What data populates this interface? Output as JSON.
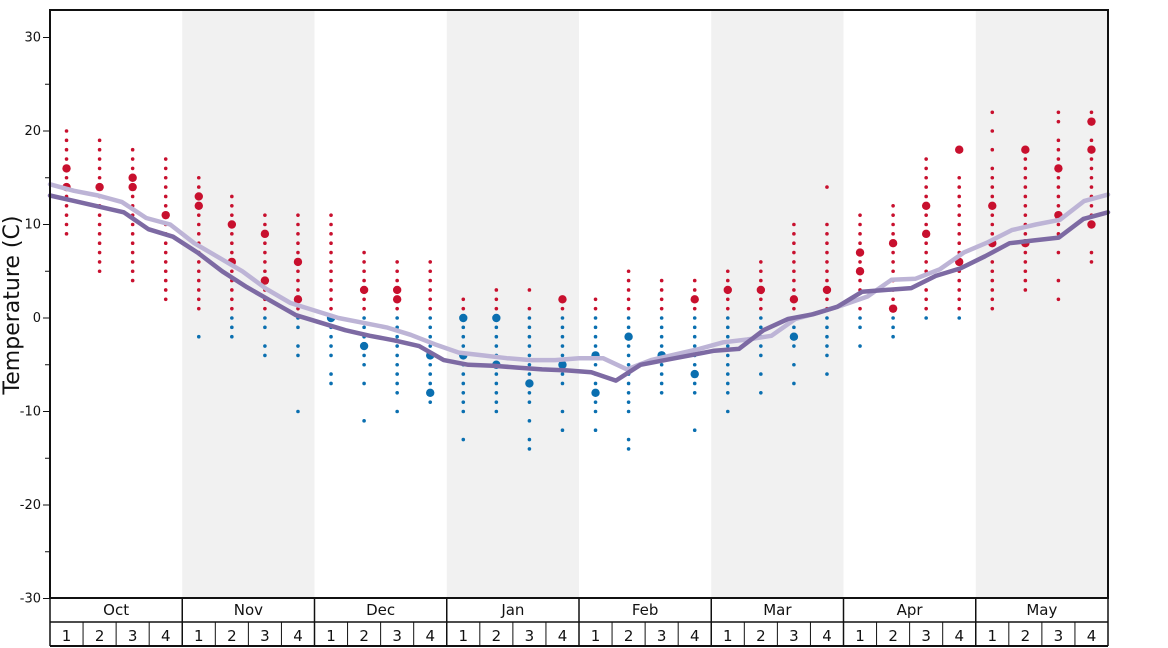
{
  "chart_data": {
    "type": "scatter",
    "ylabel": "Temperature (C)",
    "ylim": [
      -30,
      32
    ],
    "yticks": [
      30,
      20,
      10,
      0,
      -10,
      -20,
      -30
    ],
    "months": [
      "Oct",
      "Nov",
      "Dec",
      "Jan",
      "Feb",
      "Mar",
      "Apr",
      "May"
    ],
    "weeks": [
      "1",
      "2",
      "3",
      "4"
    ],
    "colors": {
      "warm": "#c8102e",
      "cold": "#0a6fb0",
      "line_dark": "#7d6aa3",
      "line_light": "#bdb4d6",
      "band": "#f1f1f1"
    },
    "series": [
      {
        "name": "",
        "style": "light",
        "values": [
          14.3,
          13.6,
          13.1,
          12.4,
          10.7,
          10.0,
          8.0,
          6.5,
          5.0,
          3.1,
          1.6,
          0.8,
          0.0,
          -0.5,
          -1.0,
          -1.8,
          -2.8,
          -3.7,
          -4.0,
          -4.3,
          -4.5,
          -4.5,
          -4.3,
          -4.3,
          -5.5,
          -4.5,
          -3.9,
          -3.3,
          -2.6,
          -2.3,
          -1.9,
          -0.1,
          0.6,
          1.4,
          2.3,
          4.1,
          4.2,
          5.2,
          7.0,
          8.1,
          9.4,
          10.0,
          10.5,
          12.5,
          13.2
        ]
      },
      {
        "name": "",
        "style": "dark",
        "values": [
          13.1,
          12.5,
          11.9,
          11.3,
          9.5,
          8.7,
          7.0,
          5.0,
          3.3,
          1.8,
          0.3,
          -0.5,
          -1.3,
          -1.9,
          -2.4,
          -3.0,
          -4.5,
          -5.0,
          -5.1,
          -5.3,
          -5.5,
          -5.6,
          -5.8,
          -6.7,
          -5.0,
          -4.5,
          -4.0,
          -3.5,
          -3.3,
          -1.3,
          -0.1,
          0.4,
          1.2,
          2.8,
          3.0,
          3.2,
          4.5,
          5.3,
          6.6,
          8.0,
          8.3,
          8.6,
          10.6,
          11.3
        ]
      }
    ],
    "dots": [
      {
        "month": 0,
        "week": 0,
        "values": [
          20,
          19,
          18,
          17,
          16,
          15,
          14,
          13,
          12,
          11,
          10,
          9
        ],
        "big": [
          16,
          14
        ]
      },
      {
        "month": 0,
        "week": 1,
        "values": [
          19,
          18,
          17,
          16,
          15,
          14,
          13,
          12,
          11,
          10,
          9,
          8,
          7,
          6,
          5
        ],
        "big": [
          14
        ]
      },
      {
        "month": 0,
        "week": 2,
        "values": [
          18,
          17,
          16,
          15,
          14,
          13,
          12,
          11,
          10,
          9,
          8,
          7,
          6,
          5,
          4
        ],
        "big": [
          15,
          14
        ]
      },
      {
        "month": 0,
        "week": 3,
        "values": [
          17,
          16,
          15,
          14,
          13,
          12,
          11,
          10,
          9,
          8,
          7,
          6,
          5,
          4,
          3,
          2
        ],
        "big": [
          11
        ]
      },
      {
        "month": 1,
        "week": 0,
        "values": [
          15,
          14,
          13,
          12,
          11,
          10,
          9,
          8,
          7,
          6,
          5,
          4,
          3,
          2,
          1,
          -2
        ],
        "big": [
          13,
          12
        ]
      },
      {
        "month": 1,
        "week": 1,
        "values": [
          13,
          12,
          11,
          10,
          9,
          8,
          7,
          6,
          5,
          4,
          3,
          2,
          1,
          0,
          -1,
          -2
        ],
        "big": [
          10,
          6
        ]
      },
      {
        "month": 1,
        "week": 2,
        "values": [
          11,
          10,
          9,
          8,
          7,
          6,
          5,
          4,
          3,
          2,
          1,
          0,
          -1,
          -3,
          -4
        ],
        "big": [
          9,
          4
        ]
      },
      {
        "month": 1,
        "week": 3,
        "values": [
          11,
          10,
          9,
          8,
          7,
          6,
          5,
          4,
          3,
          2,
          1,
          0,
          -1,
          -3,
          -4,
          -10
        ],
        "big": [
          6,
          2
        ]
      },
      {
        "month": 2,
        "week": 0,
        "values": [
          11,
          10,
          9,
          8,
          7,
          6,
          5,
          4,
          3,
          2,
          1,
          0,
          -1,
          -2,
          -3,
          -4,
          -6,
          -7
        ],
        "big": [
          0
        ]
      },
      {
        "month": 2,
        "week": 1,
        "values": [
          7,
          6,
          5,
          4,
          3,
          2,
          1,
          0,
          -1,
          -2,
          -3,
          -4,
          -5,
          -7,
          -11
        ],
        "big": [
          3,
          -3
        ]
      },
      {
        "month": 2,
        "week": 2,
        "values": [
          6,
          5,
          4,
          3,
          2,
          1,
          0,
          -1,
          -2,
          -3,
          -4,
          -5,
          -6,
          -7,
          -8,
          -10
        ],
        "big": [
          3,
          2
        ]
      },
      {
        "month": 2,
        "week": 3,
        "values": [
          6,
          5,
          4,
          3,
          2,
          1,
          0,
          -1,
          -2,
          -3,
          -4,
          -5,
          -6,
          -7,
          -8,
          -9
        ],
        "big": [
          -4,
          -8
        ]
      },
      {
        "month": 3,
        "week": 0,
        "values": [
          2,
          1,
          0,
          -1,
          -2,
          -3,
          -4,
          -5,
          -6,
          -7,
          -8,
          -9,
          -10,
          -13
        ],
        "big": [
          0,
          -4
        ]
      },
      {
        "month": 3,
        "week": 1,
        "values": [
          3,
          2,
          1,
          0,
          -1,
          -2,
          -3,
          -4,
          -5,
          -6,
          -7,
          -8,
          -9,
          -10
        ],
        "big": [
          0,
          -5
        ]
      },
      {
        "month": 3,
        "week": 2,
        "values": [
          3,
          1,
          0,
          -1,
          -2,
          -3,
          -4,
          -5,
          -6,
          -7,
          -8,
          -9,
          -11,
          -13,
          -14
        ],
        "big": [
          -7
        ]
      },
      {
        "month": 3,
        "week": 3,
        "values": [
          2,
          1,
          0,
          -1,
          -2,
          -3,
          -4,
          -5,
          -6,
          -7,
          -10,
          -12
        ],
        "big": [
          2,
          -5
        ]
      },
      {
        "month": 4,
        "week": 0,
        "values": [
          2,
          1,
          0,
          -1,
          -2,
          -3,
          -4,
          -5,
          -6,
          -7,
          -8,
          -9,
          -10,
          -12
        ],
        "big": [
          -4,
          -8
        ]
      },
      {
        "month": 4,
        "week": 1,
        "values": [
          5,
          4,
          3,
          2,
          1,
          0,
          -1,
          -2,
          -3,
          -4,
          -5,
          -6,
          -7,
          -8,
          -9,
          -10,
          -13,
          -14
        ],
        "big": [
          -2
        ]
      },
      {
        "month": 4,
        "week": 2,
        "values": [
          4,
          3,
          2,
          1,
          0,
          -1,
          -2,
          -3,
          -4,
          -5,
          -6,
          -7,
          -8
        ],
        "big": [
          -4,
          -4
        ]
      },
      {
        "month": 4,
        "week": 3,
        "values": [
          4,
          3,
          2,
          1,
          0,
          -1,
          -2,
          -3,
          -4,
          -5,
          -6,
          -7,
          -8,
          -12
        ],
        "big": [
          2,
          -6
        ]
      },
      {
        "month": 5,
        "week": 0,
        "values": [
          5,
          4,
          3,
          2,
          1,
          0,
          -1,
          -2,
          -3,
          -4,
          -5,
          -6,
          -7,
          -8,
          -10
        ],
        "big": [
          3
        ]
      },
      {
        "month": 5,
        "week": 1,
        "values": [
          6,
          5,
          4,
          3,
          2,
          1,
          0,
          -1,
          -2,
          -3,
          -4,
          -6,
          -8
        ],
        "big": [
          3
        ]
      },
      {
        "month": 5,
        "week": 2,
        "values": [
          10,
          9,
          8,
          7,
          6,
          5,
          4,
          3,
          2,
          1,
          0,
          -1,
          -2,
          -3,
          -5,
          -7
        ],
        "big": [
          2,
          -2
        ]
      },
      {
        "month": 5,
        "week": 3,
        "values": [
          14,
          10,
          9,
          8,
          7,
          6,
          5,
          4,
          3,
          2,
          1,
          0,
          -1,
          -2,
          -3,
          -4,
          -6
        ],
        "big": [
          3
        ]
      },
      {
        "month": 6,
        "week": 0,
        "values": [
          11,
          10,
          9,
          8,
          7,
          6,
          5,
          4,
          3,
          2,
          1,
          0,
          -1,
          -3
        ],
        "big": [
          5,
          7
        ]
      },
      {
        "month": 6,
        "week": 1,
        "values": [
          12,
          11,
          10,
          9,
          8,
          7,
          6,
          5,
          4,
          3,
          2,
          1,
          0,
          -1,
          -2
        ],
        "big": [
          8,
          1
        ]
      },
      {
        "month": 6,
        "week": 2,
        "values": [
          17,
          16,
          15,
          14,
          13,
          12,
          11,
          10,
          9,
          8,
          7,
          6,
          5,
          4,
          3,
          2,
          1,
          0
        ],
        "big": [
          12,
          9
        ]
      },
      {
        "month": 6,
        "week": 3,
        "values": [
          18,
          15,
          14,
          13,
          12,
          11,
          10,
          9,
          8,
          7,
          6,
          5,
          4,
          3,
          2,
          1,
          0
        ],
        "big": [
          18,
          6
        ]
      },
      {
        "month": 7,
        "week": 0,
        "values": [
          22,
          20,
          18,
          16,
          15,
          14,
          13,
          12,
          11,
          10,
          9,
          8,
          7,
          6,
          5,
          4,
          3,
          2,
          1
        ],
        "big": [
          12,
          8
        ]
      },
      {
        "month": 7,
        "week": 1,
        "values": [
          18,
          17,
          16,
          15,
          14,
          13,
          12,
          11,
          10,
          9,
          8,
          7,
          6,
          5,
          4,
          3
        ],
        "big": [
          18,
          8
        ]
      },
      {
        "month": 7,
        "week": 2,
        "values": [
          22,
          21,
          19,
          18,
          17,
          16,
          15,
          14,
          13,
          12,
          11,
          10,
          9,
          7,
          4,
          2
        ],
        "big": [
          16,
          11
        ]
      },
      {
        "month": 7,
        "week": 3,
        "values": [
          22,
          21,
          19,
          18,
          17,
          16,
          15,
          14,
          13,
          12,
          11,
          10,
          7,
          6
        ],
        "big": [
          21,
          18,
          10
        ]
      }
    ]
  }
}
